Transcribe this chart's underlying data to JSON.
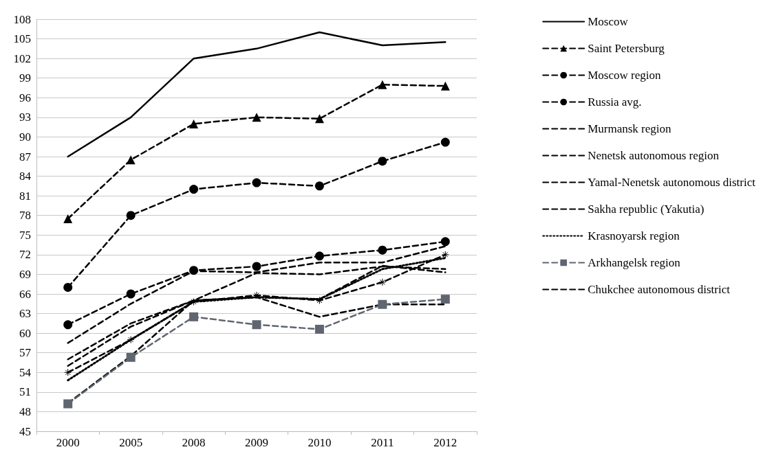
{
  "chart_data": {
    "type": "line",
    "categories": [
      "2000",
      "2005",
      "2008",
      "2009",
      "2010",
      "2011",
      "2012"
    ],
    "ylim": [
      45,
      108
    ],
    "yticks": [
      45,
      48,
      51,
      54,
      57,
      60,
      63,
      66,
      69,
      72,
      75,
      78,
      81,
      84,
      87,
      90,
      93,
      96,
      99,
      102,
      105,
      108
    ],
    "grid": "y",
    "legend": "right",
    "series": [
      {
        "name": "Moscow",
        "color": "#000000",
        "line_style": "solid",
        "marker": "none",
        "values": [
          87,
          93,
          102,
          103.5,
          106,
          104,
          104.5
        ]
      },
      {
        "name": "Saint Petersburg",
        "color": "#000000",
        "line_style": "dashed",
        "marker": "triangle",
        "values": [
          77.5,
          86.5,
          92,
          93,
          92.8,
          98,
          97.8
        ]
      },
      {
        "name": "Moscow region",
        "color": "#000000",
        "line_style": "dashed",
        "marker": "circle",
        "values": [
          67,
          78,
          82,
          83,
          82.5,
          86.3,
          89.2
        ]
      },
      {
        "name": "Russia avg.",
        "color": "#000000",
        "line_style": "dashed",
        "marker": "circle",
        "values": [
          61.3,
          66,
          69.6,
          70.2,
          71.8,
          72.7,
          74
        ]
      },
      {
        "name": "Murmansk region",
        "color": "#000000",
        "line_style": "dashed",
        "marker": "none",
        "values": [
          58.5,
          64.5,
          69.5,
          69.3,
          70.8,
          70.8,
          73.3
        ]
      },
      {
        "name": "Nenetsk autonomous region",
        "color": "#000000",
        "line_style": "dashed",
        "marker": "cross",
        "values": [
          54,
          59,
          64.8,
          65.8,
          65,
          67.8,
          72
        ]
      },
      {
        "name": "Yamal-Nenetsk autonomous district",
        "color": "#000000",
        "line_style": "dashed",
        "marker": "none",
        "values": [
          56,
          61.5,
          65,
          69.2,
          69,
          70.2,
          69.8
        ]
      },
      {
        "name": "Sakha republic (Yakutia)",
        "color": "#000000",
        "line_style": "dashed",
        "marker": "none",
        "values": [
          55,
          61,
          65,
          65.5,
          65.2,
          70.3,
          69.3
        ]
      },
      {
        "name": "Krasnoyarsk region",
        "color": "#000000",
        "line_style": "dotted",
        "marker": "none",
        "values": [
          52.8,
          59,
          64.8,
          65.5,
          65.2,
          69.8,
          71.5
        ]
      },
      {
        "name": "Arkhangelsk region",
        "color": "#5f6670",
        "line_style": "dashed",
        "marker": "square",
        "values": [
          49.2,
          56.3,
          62.5,
          61.3,
          60.6,
          64.4,
          65.2
        ]
      },
      {
        "name": "Chukchee autonomous district",
        "color": "#000000",
        "line_style": "dashed",
        "marker": "none",
        "values": [
          49.3,
          56.5,
          65,
          65.5,
          62.5,
          64.4,
          64.4
        ]
      }
    ]
  }
}
